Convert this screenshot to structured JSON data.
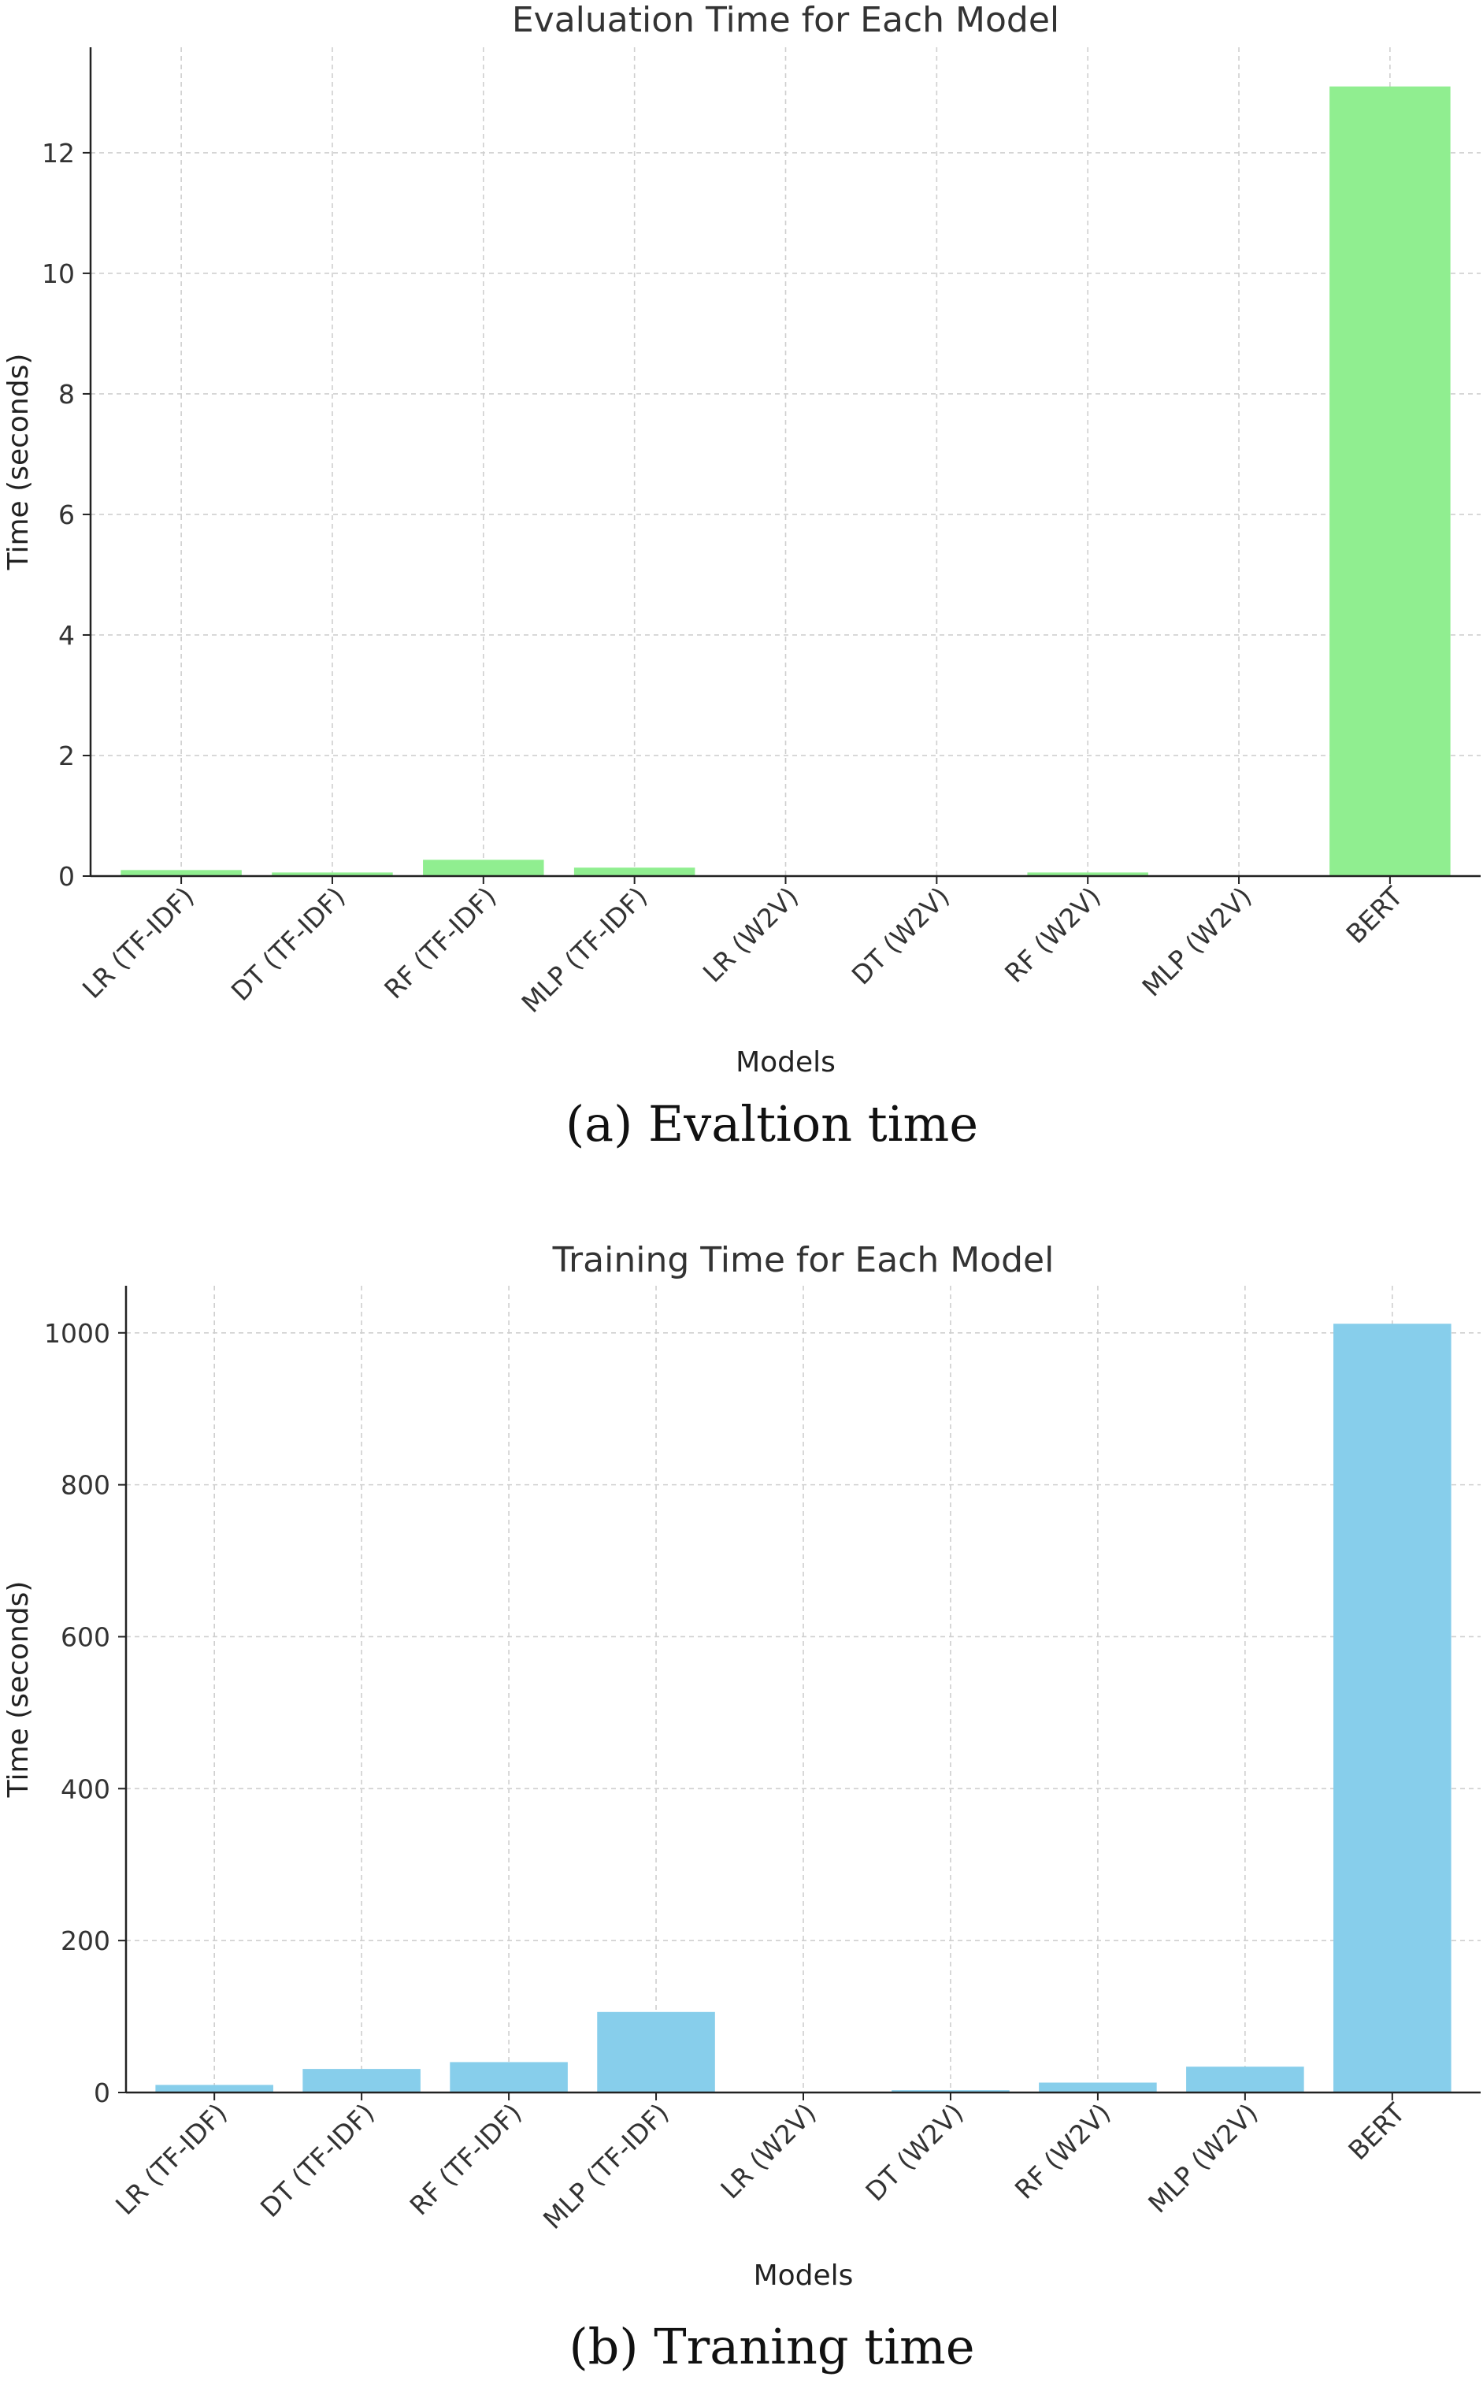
{
  "figure": {
    "captions": [
      "(a)   Evaltion time",
      "(b) Traning  time"
    ]
  },
  "chart_data": [
    {
      "type": "bar",
      "title": "Evaluation Time for Each Model",
      "xlabel": "Models",
      "ylabel": "Time (seconds)",
      "categories": [
        "LR (TF-IDF)",
        "DT (TF-IDF)",
        "RF (TF-IDF)",
        "MLP (TF-IDF)",
        "LR (W2V)",
        "DT (W2V)",
        "RF (W2V)",
        "MLP (W2V)",
        "BERT"
      ],
      "values": [
        0.1,
        0.06,
        0.27,
        0.14,
        0.01,
        0.01,
        0.06,
        0.01,
        13.1
      ],
      "ylim": [
        0,
        13.75
      ],
      "yticks": [
        0,
        2,
        4,
        6,
        8,
        10,
        12
      ],
      "grid": true,
      "bar_color": "#90ee90"
    },
    {
      "type": "bar",
      "title": "Training Time for Each Model",
      "xlabel": "Models",
      "ylabel": "Time (seconds)",
      "categories": [
        "LR (TF-IDF)",
        "DT (TF-IDF)",
        "RF (TF-IDF)",
        "MLP (TF-IDF)",
        "LR (W2V)",
        "DT (W2V)",
        "RF (W2V)",
        "MLP (W2V)",
        "BERT"
      ],
      "values": [
        10,
        31,
        40,
        106,
        1,
        3,
        13,
        34,
        1012
      ],
      "ylim": [
        0,
        1062
      ],
      "yticks": [
        0,
        200,
        400,
        600,
        800,
        1000
      ],
      "grid": true,
      "bar_color": "#87ceeb"
    }
  ]
}
